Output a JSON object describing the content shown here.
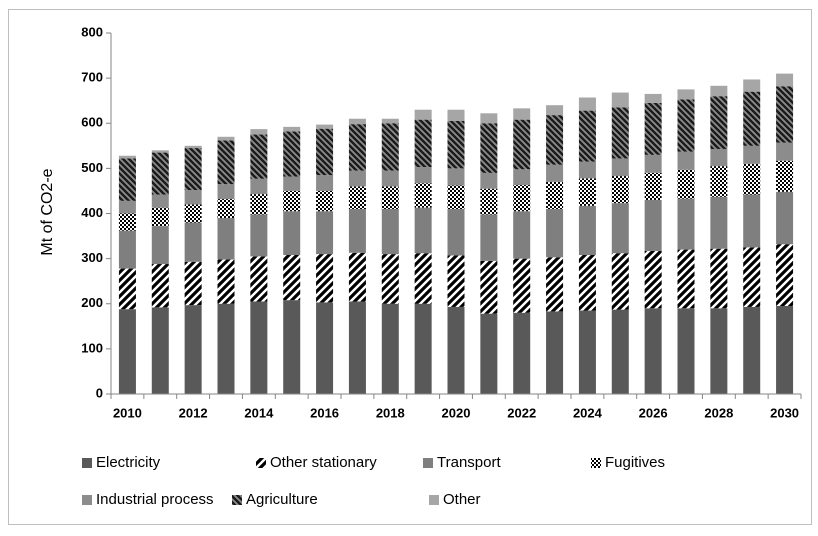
{
  "chart_data": {
    "type": "stacked-bar",
    "y_label": "Mt of CO2-e",
    "categories": [
      "2010",
      null,
      "2012",
      null,
      "2014",
      null,
      "2016",
      null,
      "2018",
      null,
      "2020",
      null,
      "2022",
      null,
      "2024",
      null,
      "2026",
      null,
      "2028",
      null,
      "2030"
    ],
    "ylim": [
      0,
      800
    ],
    "yticks": [
      0,
      100,
      200,
      300,
      400,
      500,
      600,
      700,
      800
    ],
    "grid": false,
    "legend": "bottom",
    "series": [
      {
        "name": "Electricity",
        "color": "#595959",
        "pattern": "solid",
        "values": [
          188,
          192,
          197,
          200,
          205,
          208,
          203,
          205,
          200,
          200,
          193,
          178,
          180,
          183,
          185,
          187,
          190,
          190,
          190,
          193,
          195
        ]
      },
      {
        "name": "Other stationary",
        "color": "#000000",
        "pattern": "diagonal-up",
        "values": [
          90,
          96,
          96,
          98,
          100,
          100,
          107,
          108,
          110,
          112,
          114,
          117,
          120,
          120,
          123,
          125,
          127,
          130,
          132,
          132,
          137
        ]
      },
      {
        "name": "Transport",
        "color": "#7f7f7f",
        "pattern": "solid",
        "values": [
          84,
          84,
          87,
          92,
          93,
          97,
          95,
          97,
          100,
          101,
          103,
          103,
          105,
          107,
          109,
          111,
          113,
          113,
          115,
          117,
          116
        ]
      },
      {
        "name": "Fugitives",
        "color": "#000000",
        "pattern": "checker",
        "values": [
          38,
          41,
          40,
          42,
          45,
          45,
          45,
          50,
          50,
          54,
          52,
          57,
          58,
          60,
          61,
          60,
          60,
          64,
          68,
          68,
          69
        ]
      },
      {
        "name": "Industrial process",
        "color": "#8c8c8c",
        "pattern": "solid",
        "values": [
          28,
          29,
          32,
          33,
          34,
          32,
          35,
          35,
          35,
          36,
          38,
          35,
          35,
          38,
          37,
          39,
          40,
          40,
          38,
          40,
          40
        ]
      },
      {
        "name": "Agriculture",
        "color": "#1a1a1a",
        "pattern": "diagonal-down",
        "values": [
          94,
          93,
          93,
          97,
          98,
          100,
          103,
          103,
          105,
          105,
          105,
          110,
          110,
          110,
          113,
          113,
          115,
          116,
          117,
          120,
          125
        ]
      },
      {
        "name": "Other",
        "color": "#a6a6a6",
        "pattern": "solid",
        "values": [
          6,
          5,
          5,
          8,
          12,
          10,
          9,
          12,
          10,
          22,
          25,
          22,
          25,
          22,
          29,
          33,
          20,
          22,
          23,
          27,
          28
        ]
      }
    ]
  }
}
